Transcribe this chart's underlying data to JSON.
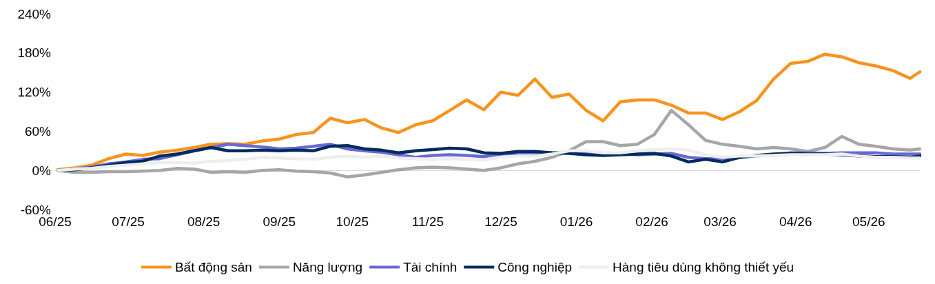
{
  "chart_data": {
    "type": "line",
    "legend": "bottom",
    "marker": "none",
    "line_style": "solid",
    "x": [
      "2025-06-02",
      "2025-06-09",
      "2025-06-16",
      "2025-06-23",
      "2025-06-30",
      "2025-07-07",
      "2025-07-14",
      "2025-07-21",
      "2025-07-28",
      "2025-08-04",
      "2025-08-11",
      "2025-08-18",
      "2025-08-25",
      "2025-09-01",
      "2025-09-08",
      "2025-09-15",
      "2025-09-22",
      "2025-09-29",
      "2025-10-06",
      "2025-10-13",
      "2025-10-20",
      "2025-10-27",
      "2025-11-03",
      "2025-11-10",
      "2025-11-17",
      "2025-11-24",
      "2025-12-01",
      "2025-12-08",
      "2025-12-15",
      "2025-12-22",
      "2025-12-29",
      "2026-01-05",
      "2026-01-12",
      "2026-01-19",
      "2026-01-26",
      "2026-02-02",
      "2026-02-09",
      "2026-02-16",
      "2026-02-23",
      "2026-03-02",
      "2026-03-09",
      "2026-03-16",
      "2026-03-23",
      "2026-03-30",
      "2026-04-06",
      "2026-04-13",
      "2026-04-20",
      "2026-04-27",
      "2026-05-04",
      "2026-05-11",
      "2026-05-18",
      "2026-05-22"
    ],
    "series": [
      {
        "name": "Bất động sản",
        "color": "#f7931e",
        "values": [
          1,
          4,
          8,
          18,
          25,
          23,
          28,
          31,
          35,
          40,
          41,
          40,
          45,
          48,
          55,
          58,
          80,
          73,
          78,
          65,
          58,
          70,
          76,
          92,
          108,
          93,
          120,
          115,
          140,
          112,
          117,
          92,
          76,
          105,
          108,
          108,
          100,
          88,
          88,
          78,
          90,
          107,
          140,
          164,
          167,
          178,
          174,
          165,
          160,
          153,
          141,
          151
        ]
      },
      {
        "name": "Năng lượng",
        "color": "#a6a6a6",
        "values": [
          0,
          -3,
          -3,
          -2,
          -2,
          -1,
          0,
          3,
          2,
          -3,
          -2,
          -3,
          0,
          1,
          -1,
          -2,
          -4,
          -10,
          -7,
          -3,
          1,
          4,
          5,
          4,
          2,
          0,
          4,
          10,
          14,
          20,
          30,
          44,
          44,
          38,
          40,
          55,
          92,
          70,
          46,
          40,
          37,
          33,
          35,
          33,
          29,
          35,
          52,
          40,
          37,
          33,
          31,
          33
        ]
      },
      {
        "name": "Tài chính",
        "color": "#6a68d4",
        "values": [
          0,
          2,
          5,
          10,
          13,
          17,
          18,
          24,
          30,
          35,
          40,
          38,
          36,
          33,
          34,
          37,
          40,
          33,
          30,
          28,
          24,
          20,
          23,
          24,
          23,
          21,
          25,
          26,
          27,
          27,
          28,
          28,
          26,
          26,
          24,
          25,
          26,
          20,
          18,
          18,
          20,
          22,
          24,
          27,
          27,
          26,
          27,
          27,
          27,
          25,
          25,
          25
        ]
      },
      {
        "name": "Công nghiệp",
        "color": "#002b5c",
        "values": [
          0,
          1,
          4,
          8,
          12,
          14,
          22,
          25,
          30,
          35,
          30,
          30,
          31,
          30,
          31,
          30,
          37,
          38,
          33,
          31,
          27,
          30,
          32,
          34,
          33,
          27,
          26,
          29,
          29,
          27,
          26,
          24,
          23,
          24,
          25,
          26,
          22,
          13,
          17,
          13,
          20,
          23,
          25,
          26,
          25,
          25,
          24,
          22,
          21,
          21,
          20,
          22
        ]
      },
      {
        "name": "Hàng tiêu dùng không thiết yếu",
        "color": "#eeeeee",
        "values": [
          0,
          2,
          3,
          6,
          8,
          10,
          12,
          12,
          11,
          14,
          15,
          17,
          20,
          19,
          18,
          17,
          20,
          22,
          20,
          22,
          19,
          18,
          17,
          18,
          17,
          16,
          20,
          22,
          22,
          25,
          30,
          30,
          27,
          27,
          30,
          32,
          33,
          31,
          24,
          20,
          22,
          22,
          23,
          24,
          24,
          24,
          25,
          22,
          20,
          20,
          19,
          19
        ]
      }
    ],
    "xticks": [
      {
        "value": "2025-06-01",
        "label": "06/25"
      },
      {
        "value": "2025-07-01",
        "label": "07/25"
      },
      {
        "value": "2025-08-01",
        "label": "08/25"
      },
      {
        "value": "2025-09-01",
        "label": "09/25"
      },
      {
        "value": "2025-10-01",
        "label": "10/25"
      },
      {
        "value": "2025-11-01",
        "label": "11/25"
      },
      {
        "value": "2025-12-01",
        "label": "12/25"
      },
      {
        "value": "2026-01-01",
        "label": "01/26"
      },
      {
        "value": "2026-02-01",
        "label": "02/26"
      },
      {
        "value": "2026-03-01",
        "label": "03/26"
      },
      {
        "value": "2026-04-01",
        "label": "04/26"
      },
      {
        "value": "2026-05-01",
        "label": "05/26"
      }
    ],
    "xlim": [
      "2025-06-01",
      "2026-05-22"
    ],
    "ylim": [
      -60,
      240
    ],
    "yticks": [
      {
        "value": -60,
        "label": "-60%"
      },
      {
        "value": 0,
        "label": "0%"
      },
      {
        "value": 60,
        "label": "60%"
      },
      {
        "value": 120,
        "label": "120%"
      },
      {
        "value": 180,
        "label": "180%"
      },
      {
        "value": 240,
        "label": "240%"
      }
    ]
  }
}
